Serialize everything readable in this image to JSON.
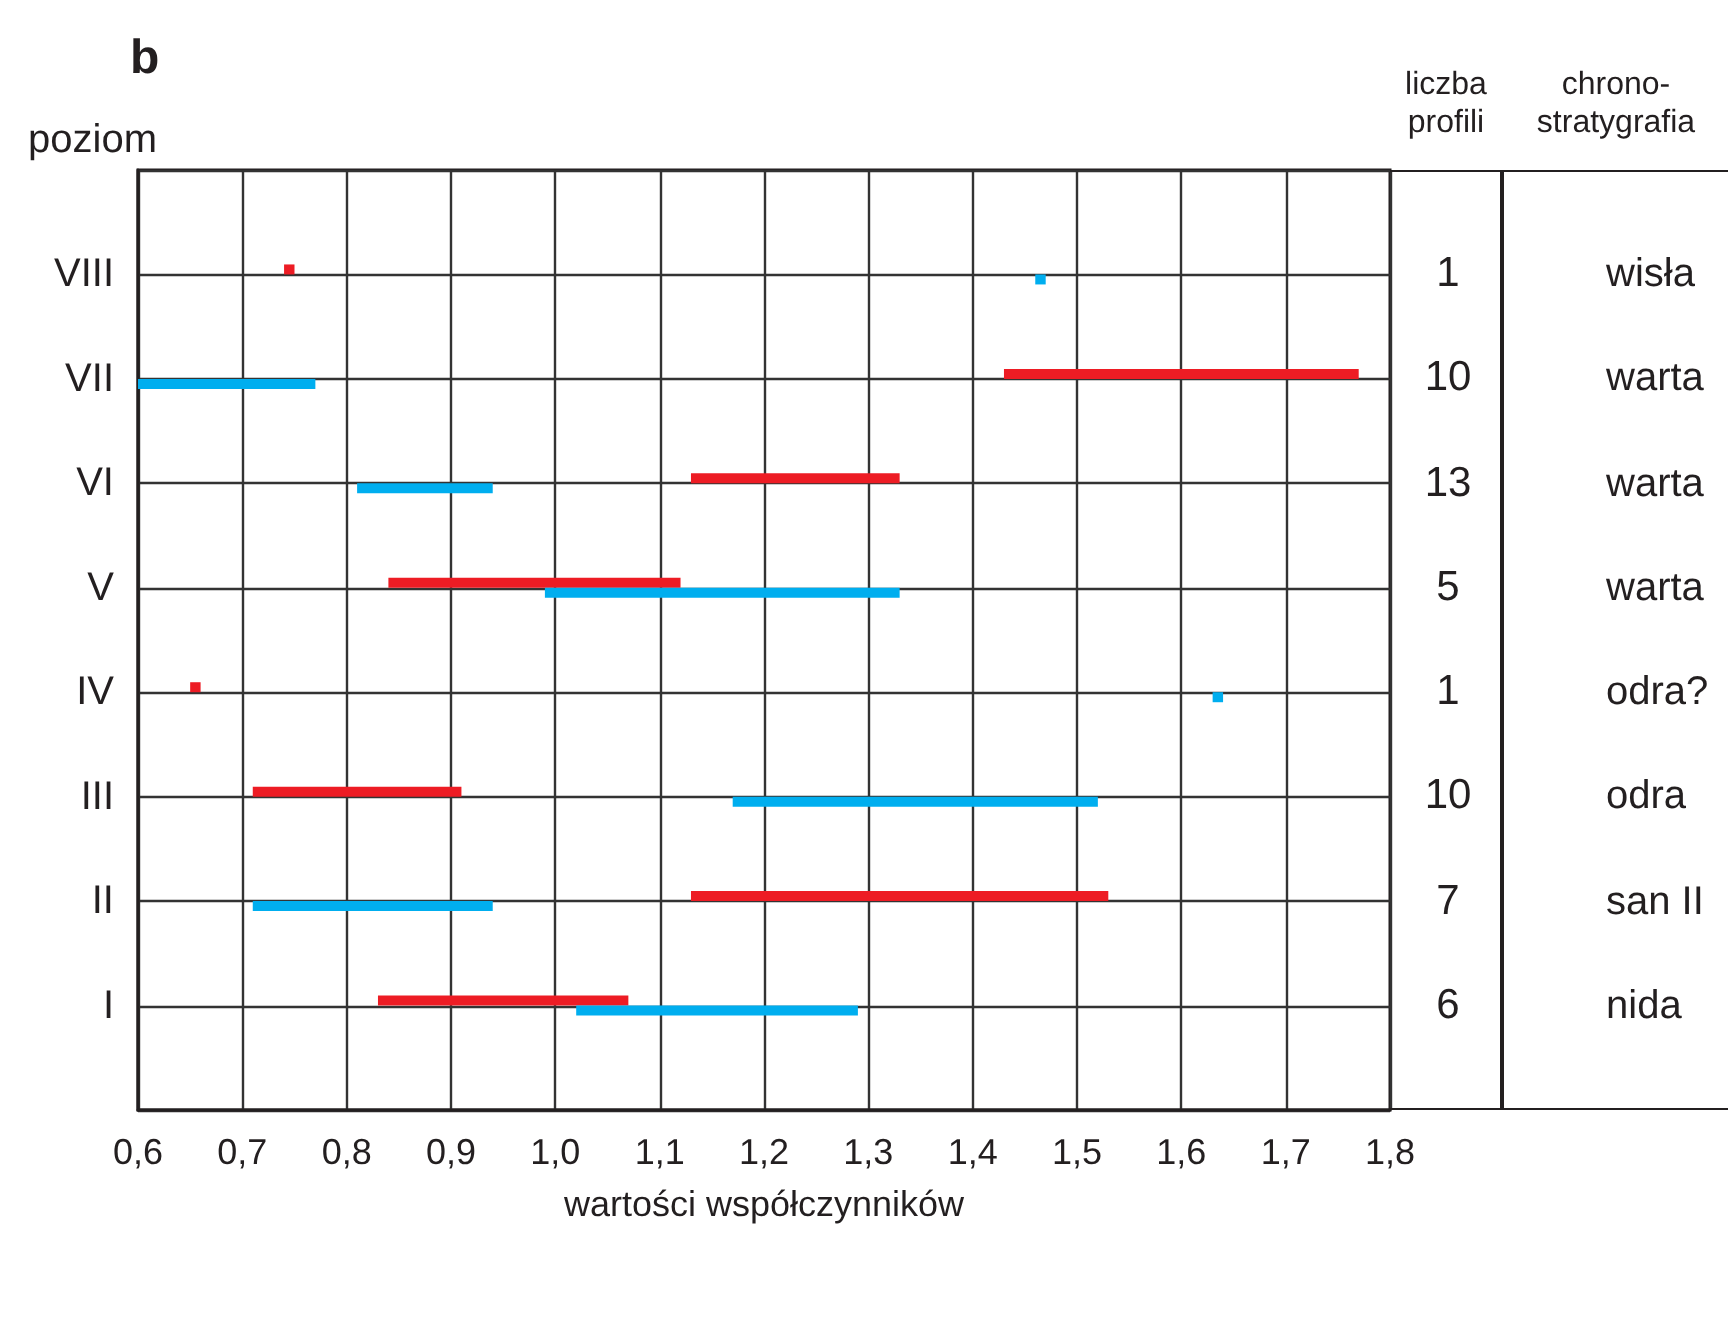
{
  "chart_data": {
    "type": "bar",
    "orientation": "horizontal",
    "title": "b",
    "ylabel": "poziom",
    "xlabel": "wartości współczynników",
    "categories": [
      "VIII",
      "VII",
      "VI",
      "V",
      "IV",
      "III",
      "II",
      "I"
    ],
    "series": [
      {
        "color": "#ed1c24",
        "base": [
          0.74,
          1.43,
          1.13,
          0.84,
          0.65,
          0.71,
          1.13,
          0.83
        ],
        "values": [
          0.01,
          0.34,
          0.2,
          0.28,
          0.01,
          0.2,
          0.4,
          0.24
        ]
      },
      {
        "color": "#00aeef",
        "base": [
          1.46,
          0.6,
          0.81,
          0.99,
          1.63,
          1.17,
          0.71,
          1.02
        ],
        "values": [
          0.01,
          0.17,
          0.13,
          0.34,
          0.01,
          0.35,
          0.23,
          0.27
        ]
      }
    ],
    "xlim": [
      0.6,
      1.8
    ],
    "xticks": [
      {
        "value": 0.6,
        "label": "0,6"
      },
      {
        "value": 0.7,
        "label": "0,7"
      },
      {
        "value": 0.8,
        "label": "0,8"
      },
      {
        "value": 0.9,
        "label": "0,9"
      },
      {
        "value": 1.0,
        "label": "1,0"
      },
      {
        "value": 1.1,
        "label": "1,1"
      },
      {
        "value": 1.2,
        "label": "1,2"
      },
      {
        "value": 1.3,
        "label": "1,3"
      },
      {
        "value": 1.4,
        "label": "1,4"
      },
      {
        "value": 1.5,
        "label": "1,5"
      },
      {
        "value": 1.6,
        "label": "1,6"
      },
      {
        "value": 1.7,
        "label": "1,7"
      },
      {
        "value": 1.8,
        "label": "1,8"
      }
    ],
    "grid": true,
    "annotations": [
      "liczba profili",
      "chrono-stratygrafia",
      "1",
      "10",
      "13",
      "5",
      "1",
      "10",
      "7",
      "6",
      "wisła",
      "warta",
      "warta",
      "warta",
      "odra?",
      "odra",
      "san II",
      "nida"
    ]
  }
}
